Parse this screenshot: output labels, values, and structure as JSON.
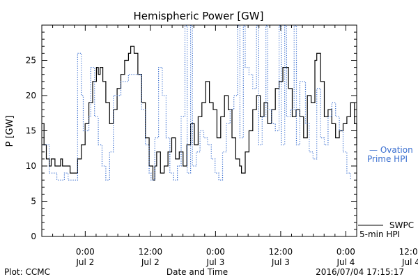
{
  "chart_data": {
    "type": "line",
    "title": "Hemispheric Power [GW]",
    "xlabel": "Date and Time",
    "ylabel": "P [GW]",
    "ylim": [
      0,
      30
    ],
    "yticks": [
      0,
      5,
      10,
      15,
      20,
      25
    ],
    "xlim_hours": [
      -8,
      50
    ],
    "xticks": [
      {
        "hour": 0,
        "line1": "0:00",
        "line2": "Jul 2"
      },
      {
        "hour": 12,
        "line1": "12:00",
        "line2": "Jul 2"
      },
      {
        "hour": 24,
        "line1": "0:00",
        "line2": "Jul 3"
      },
      {
        "hour": 36,
        "line1": "12:00",
        "line2": "Jul 3"
      },
      {
        "hour": 48,
        "line1": "0:00",
        "line2": "Jul 4"
      },
      {
        "hour": 60,
        "line1": "12:00",
        "line2": "Jul 4"
      }
    ],
    "grid": false,
    "series": [
      {
        "name": "SWPC 5-min HPI",
        "legend_line1": "SWPC",
        "legend_line2": "5-min HPI",
        "color": "#000000",
        "style": "solid",
        "points": [
          [
            -8,
            16
          ],
          [
            -7.4,
            13
          ],
          [
            -6.8,
            11
          ],
          [
            -6,
            10
          ],
          [
            -5.5,
            11
          ],
          [
            -4.5,
            10
          ],
          [
            -3.5,
            10
          ],
          [
            -3,
            11
          ],
          [
            -2.5,
            10
          ],
          [
            -1,
            10
          ],
          [
            -0.5,
            9
          ],
          [
            0.5,
            9
          ],
          [
            1.5,
            11
          ],
          [
            2.5,
            13
          ],
          [
            3.5,
            16
          ],
          [
            4.5,
            19
          ],
          [
            5.5,
            22
          ],
          [
            6.5,
            24
          ],
          [
            7,
            23
          ],
          [
            7.5,
            24
          ],
          [
            8.2,
            22
          ],
          [
            9,
            19
          ],
          [
            10,
            16
          ],
          [
            11,
            18
          ],
          [
            12,
            21
          ],
          [
            13,
            23
          ],
          [
            14,
            25
          ],
          [
            15,
            26
          ],
          [
            15.6,
            27
          ],
          [
            16.5,
            26
          ],
          [
            17.5,
            23
          ],
          [
            18.5,
            19
          ],
          [
            19.5,
            14
          ],
          [
            20.5,
            10
          ],
          [
            21.5,
            8
          ],
          [
            22,
            10
          ],
          [
            22.5,
            12
          ],
          [
            23.5,
            9
          ],
          [
            24.5,
            10
          ],
          [
            25.5,
            12
          ],
          [
            26.5,
            14
          ],
          [
            27.5,
            11
          ],
          [
            28.5,
            12
          ],
          [
            29.5,
            10
          ],
          [
            30.5,
            13
          ],
          [
            31.5,
            16
          ],
          [
            32.5,
            13
          ],
          [
            33.5,
            17
          ],
          [
            34.5,
            19
          ],
          [
            35.5,
            22
          ],
          [
            36.5,
            19
          ],
          [
            37.5,
            18
          ],
          [
            38.5,
            14
          ],
          [
            39.5,
            17
          ],
          [
            40.5,
            20
          ],
          [
            41.5,
            18
          ],
          [
            42.5,
            14
          ],
          [
            43.5,
            11
          ],
          [
            44.5,
            10
          ],
          [
            45,
            9
          ],
          [
            46,
            12
          ],
          [
            47,
            15
          ],
          [
            48,
            18
          ],
          [
            49,
            20
          ],
          [
            50,
            17
          ],
          [
            51,
            19
          ],
          [
            52,
            16
          ],
          [
            53,
            18
          ],
          [
            54,
            21
          ],
          [
            55,
            22
          ],
          [
            56,
            24
          ],
          [
            56.5,
            24
          ],
          [
            57.5,
            21
          ],
          [
            58.5,
            17
          ],
          [
            59.5,
            18
          ],
          [
            60.5,
            17
          ],
          [
            61.5,
            14
          ],
          [
            62.5,
            20
          ],
          [
            63.5,
            19
          ],
          [
            64.5,
            25
          ],
          [
            65,
            26
          ],
          [
            66,
            22
          ],
          [
            67,
            17
          ],
          [
            68,
            18
          ],
          [
            69,
            16
          ],
          [
            70,
            14
          ],
          [
            71,
            15
          ],
          [
            72,
            16
          ],
          [
            73,
            17
          ],
          [
            74,
            19
          ],
          [
            75,
            16
          ],
          [
            75.6,
            13
          ]
        ]
      },
      {
        "name": "Ovation Prime HPI",
        "legend_line1": "— Ovation",
        "legend_line2": "Prime HPI",
        "color": "#3a6fd0",
        "style": "dotted",
        "points": [
          [
            -8,
            13
          ],
          [
            -6,
            9
          ],
          [
            -4,
            8
          ],
          [
            -2,
            9
          ],
          [
            -1,
            8
          ],
          [
            1,
            8
          ],
          [
            1.5,
            26
          ],
          [
            2.5,
            20
          ],
          [
            3,
            15
          ],
          [
            4.5,
            17
          ],
          [
            5,
            24
          ],
          [
            6,
            17
          ],
          [
            7,
            13
          ],
          [
            8,
            10
          ],
          [
            9,
            8
          ],
          [
            10,
            12
          ],
          [
            11,
            20
          ],
          [
            13,
            22
          ],
          [
            15,
            23
          ],
          [
            17,
            23
          ],
          [
            18.5,
            18
          ],
          [
            19.5,
            13
          ],
          [
            20.5,
            9
          ],
          [
            21,
            8
          ],
          [
            22,
            14
          ],
          [
            23,
            24
          ],
          [
            24,
            20
          ],
          [
            25,
            14
          ],
          [
            26,
            9
          ],
          [
            27,
            8
          ],
          [
            28,
            10
          ],
          [
            29,
            17
          ],
          [
            30,
            30
          ],
          [
            30.6,
            9
          ],
          [
            31.5,
            30
          ],
          [
            32,
            10
          ],
          [
            33,
            12
          ],
          [
            34,
            15
          ],
          [
            35,
            14
          ],
          [
            36,
            13
          ],
          [
            37,
            11
          ],
          [
            38,
            9
          ],
          [
            39,
            8
          ],
          [
            40,
            12
          ],
          [
            41,
            16
          ],
          [
            42,
            18
          ],
          [
            43,
            20
          ],
          [
            44,
            30
          ],
          [
            44.6,
            14
          ],
          [
            45.5,
            30
          ],
          [
            46,
            24
          ],
          [
            47,
            23
          ],
          [
            48,
            21
          ],
          [
            49,
            30
          ],
          [
            49.6,
            13
          ],
          [
            50.5,
            17
          ],
          [
            51.5,
            30
          ],
          [
            52,
            18
          ],
          [
            53,
            16
          ],
          [
            54,
            15
          ],
          [
            55,
            30
          ],
          [
            55.6,
            13
          ],
          [
            56.5,
            30
          ],
          [
            57,
            17
          ],
          [
            58,
            18
          ],
          [
            59,
            30
          ],
          [
            59.6,
            13
          ],
          [
            60.5,
            22
          ],
          [
            62,
            16
          ],
          [
            63,
            12
          ],
          [
            64,
            11
          ],
          [
            65,
            21
          ],
          [
            66,
            14
          ],
          [
            67,
            13
          ],
          [
            68,
            17
          ],
          [
            69,
            19
          ],
          [
            70,
            17
          ],
          [
            71,
            15
          ],
          [
            72,
            12
          ],
          [
            73,
            9
          ],
          [
            74,
            8
          ]
        ]
      }
    ]
  },
  "footer": {
    "plot_credit": "Plot: CCMC",
    "timestamp": "2016/07/04 17:15:17"
  }
}
